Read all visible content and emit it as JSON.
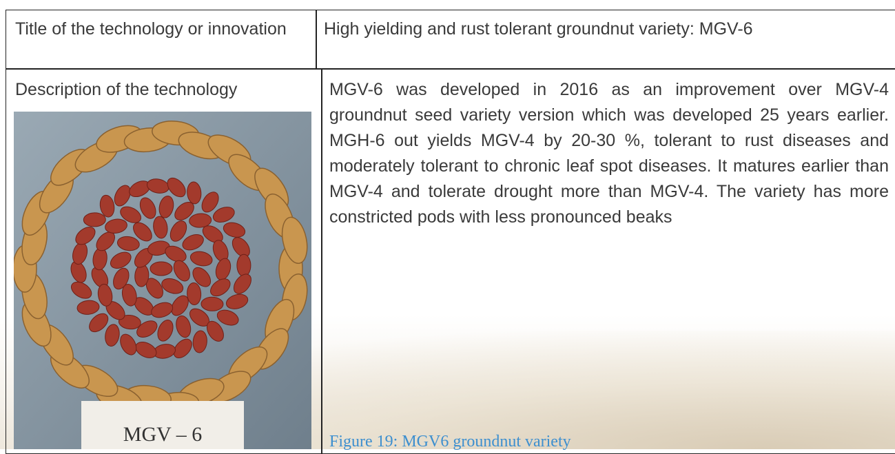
{
  "table": {
    "rows": [
      [
        "Title of the technology or innovation",
        "High yielding and rust tolerant groundnut variety: MGV-6"
      ],
      [
        "Description of the technology",
        "MGV-6 was developed in 2016 as an improvement over MGV-4 groundnut seed variety version which was developed 25 years earlier. MGH-6 out yields MGV-4 by 20-30 %, tolerant to rust diseases and moderately tolerant to chronic leaf spot diseases. It matures earlier than MGV-4 and tolerate drought more than MGV-4. The variety has more constricted pods with less pronounced beaks"
      ]
    ]
  },
  "figure": {
    "photo_label": "MGV – 6",
    "caption": "Figure 19: MGV6 groundnut variety"
  }
}
